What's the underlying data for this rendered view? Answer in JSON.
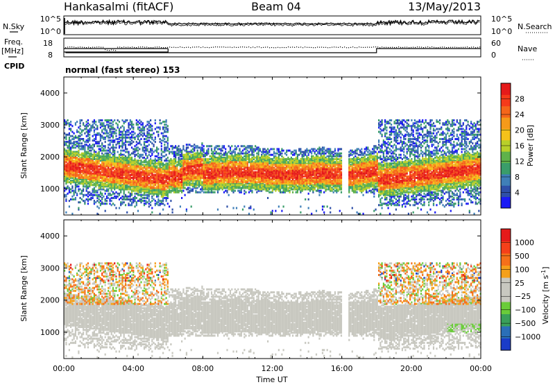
{
  "header": {
    "station": "Hankasalmi (fitACF)",
    "beam": "Beam 04",
    "date": "13/May/2013"
  },
  "strip_nsky": {
    "left_label": "N.Sky",
    "right_label": "N.Search",
    "top_tick": "10^5",
    "bottom_tick": "10^0"
  },
  "strip_freq": {
    "left_label": "Freq.",
    "unit": "[MHz]",
    "left_ticks": [
      "18",
      "8"
    ],
    "right_ticks": [
      "60",
      "0"
    ],
    "right_label": "Nave"
  },
  "cpid": {
    "label": "CPID",
    "value": "normal (fast stereo) 153"
  },
  "colors": {
    "power": [
      "#1a1af5",
      "#2e4fa8",
      "#3f7fb8",
      "#3a9d6a",
      "#5fb24a",
      "#b8cf2a",
      "#f5c21a",
      "#f59a1a",
      "#f5661a",
      "#f53a1a",
      "#e51a1a"
    ],
    "velocity": [
      "#1a3cc8",
      "#2a6fb8",
      "#3aa05a",
      "#6acc3a",
      "#c8c8c0",
      "#c8c8c0",
      "#f5a01a",
      "#f5701a",
      "#f5401a",
      "#e51a1a"
    ],
    "gray": "#c8c8c0"
  },
  "chart_data": [
    {
      "type": "heatmap",
      "name": "power",
      "ylabel": "Slant Range [km]",
      "ylim": [
        180,
        4500
      ],
      "xlim": [
        0,
        24
      ],
      "y_ticks": [
        "1000",
        "2000",
        "3000",
        "4000"
      ],
      "colorbar": {
        "label": "Power [dB]",
        "range": [
          0,
          32
        ],
        "ticks": [
          "4",
          "8",
          "12",
          "16",
          "20",
          "24",
          "28"
        ]
      }
    },
    {
      "type": "heatmap",
      "name": "velocity",
      "ylabel": "Slant Range [km]",
      "ylim": [
        180,
        4500
      ],
      "xlim": [
        0,
        24
      ],
      "y_ticks": [
        "1000",
        "2000",
        "3000",
        "4000"
      ],
      "colorbar": {
        "label": "Velocity [m s",
        "label_sup": "-1",
        "label_tail": "]",
        "ticks": [
          "1000",
          "500",
          "100",
          "25",
          "−25",
          "−100",
          "−500",
          "−1000"
        ]
      }
    }
  ],
  "x_axis": {
    "label": "Time UT",
    "ticks": [
      "00:00",
      "04:00",
      "08:00",
      "12:00",
      "16:00",
      "20:00",
      "00:00"
    ]
  }
}
